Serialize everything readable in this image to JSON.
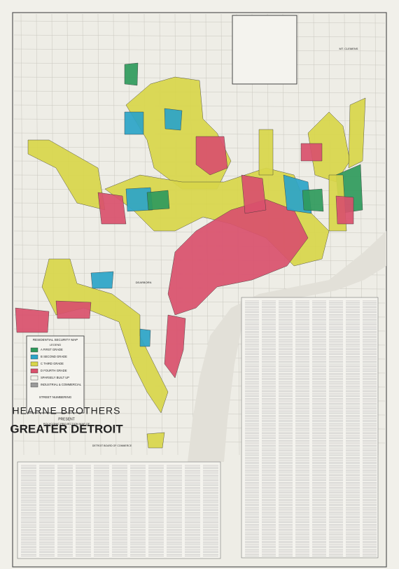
{
  "header": {
    "presenter": "HEARNE BROTHERS",
    "present": "PRESENT",
    "subtitle": "POLYCONIC PROJECTION MAP OF",
    "title": "GREATER DETROIT",
    "sponsor": "DETROIT BOARD OF COMMERCE"
  },
  "legend": {
    "title": "RESIDENTIAL SECURITY MAP",
    "heading": "LEGEND",
    "items": [
      {
        "label": "A FIRST GRADE",
        "color": "#2f9a5c"
      },
      {
        "label": "B SECOND GRADE",
        "color": "#2ba4c8"
      },
      {
        "label": "C THIRD GRADE",
        "color": "#d8d64a"
      },
      {
        "label": "D FOURTH GRADE",
        "color": "#d9506c"
      },
      {
        "label": "SPARSELY BUILT UP",
        "color": "#f2f1ea"
      },
      {
        "label": "INDUSTRIAL & COMMERCIAL",
        "color": "#9a9a9a"
      }
    ]
  },
  "places": {
    "dearborn": "DEARBORN",
    "mt_clemens": "MT. CLEMENS"
  },
  "street_numbering": "STREET NUMBERING"
}
